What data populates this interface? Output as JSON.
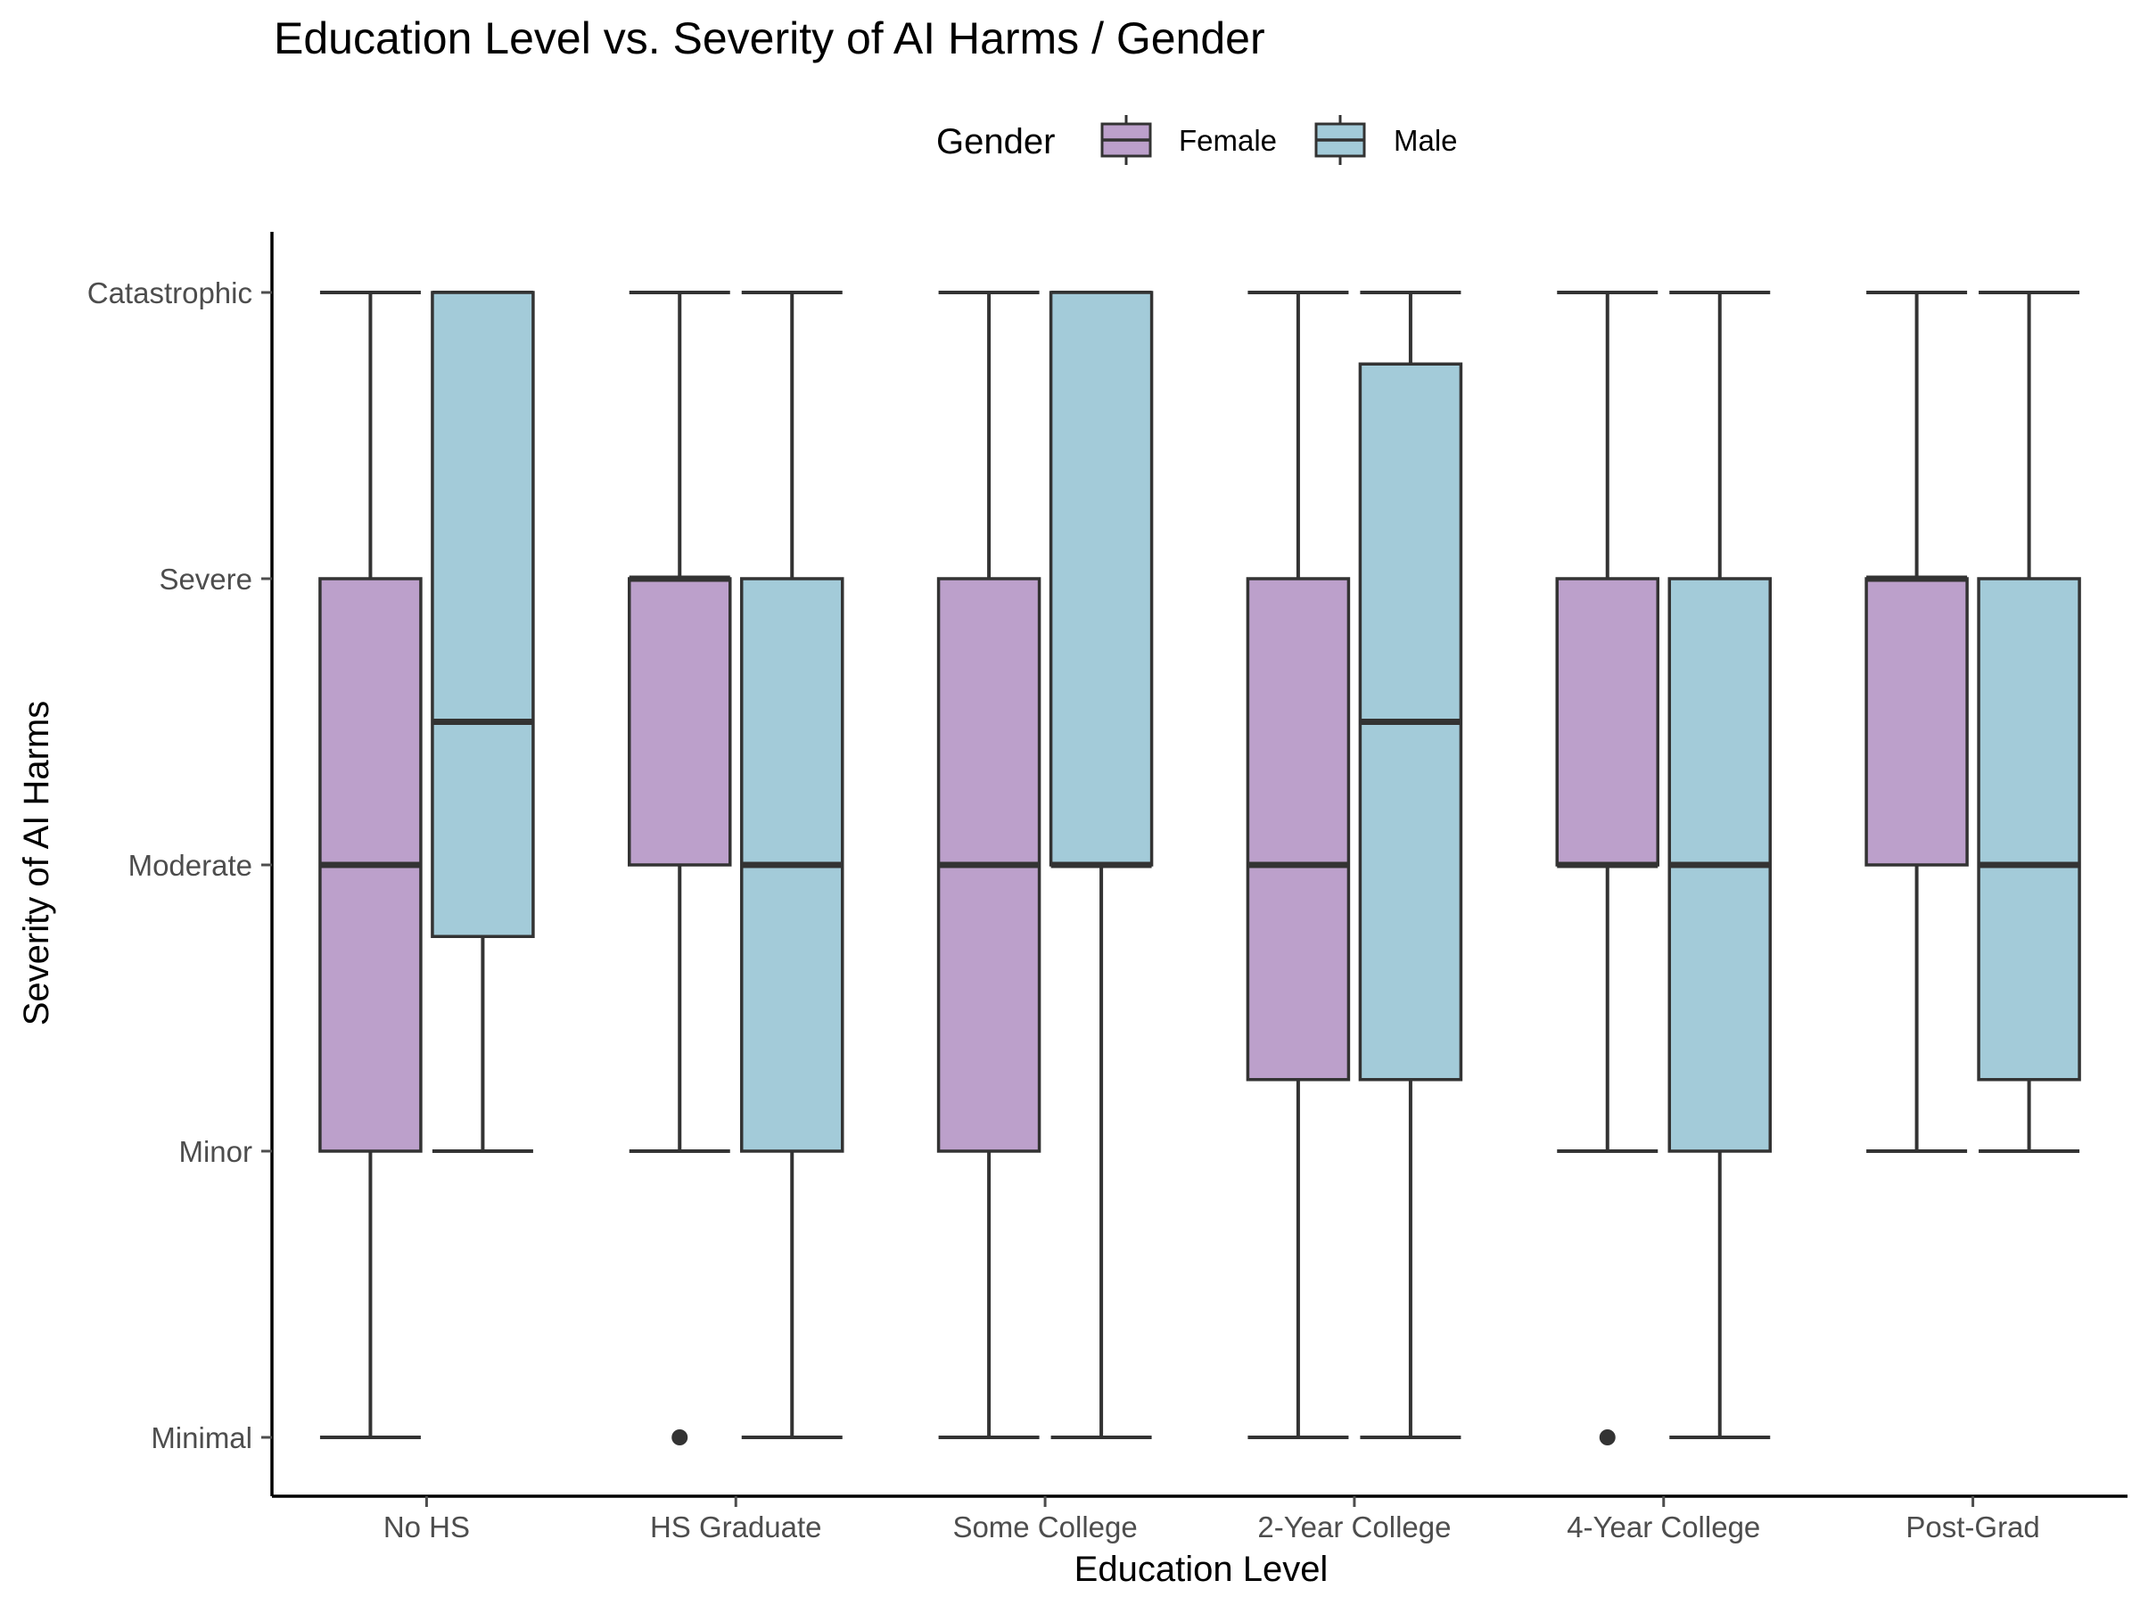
{
  "chart_data": {
    "type": "boxplot",
    "title": "Education Level vs. Severity of AI Harms / Gender",
    "xlabel": "Education Level",
    "ylabel": "Severity of AI Harms",
    "y_levels": [
      "Minimal",
      "Minor",
      "Moderate",
      "Severe",
      "Catastrophic"
    ],
    "ylim": [
      0.85,
      5.15
    ],
    "categories": [
      "No HS",
      "HS Graduate",
      "Some College",
      "2-Year College",
      "4-Year College",
      "Post-Grad"
    ],
    "legend": {
      "title": "Gender",
      "position": "top",
      "entries": [
        {
          "label": "Female",
          "color": "#bca0cb"
        },
        {
          "label": "Male",
          "color": "#a3cbd9"
        }
      ]
    },
    "series": [
      {
        "name": "Female",
        "color": "#bca0cb",
        "boxes": [
          {
            "category": "No HS",
            "whisker_low": 1,
            "q1": 2,
            "median": 3,
            "q3": 4,
            "whisker_high": 5,
            "outliers": []
          },
          {
            "category": "HS Graduate",
            "whisker_low": 2,
            "q1": 3,
            "median": 4,
            "q3": 4,
            "whisker_high": 5,
            "outliers": [
              1
            ]
          },
          {
            "category": "Some College",
            "whisker_low": 1,
            "q1": 2,
            "median": 3,
            "q3": 4,
            "whisker_high": 5,
            "outliers": []
          },
          {
            "category": "2-Year College",
            "whisker_low": 1,
            "q1": 2.25,
            "median": 3,
            "q3": 4,
            "whisker_high": 5,
            "outliers": []
          },
          {
            "category": "4-Year College",
            "whisker_low": 2,
            "q1": 3,
            "median": 3,
            "q3": 4,
            "whisker_high": 5,
            "outliers": [
              1
            ]
          },
          {
            "category": "Post-Grad",
            "whisker_low": 2,
            "q1": 3,
            "median": 4,
            "q3": 4,
            "whisker_high": 5,
            "outliers": []
          }
        ]
      },
      {
        "name": "Male",
        "color": "#a3cbd9",
        "boxes": [
          {
            "category": "No HS",
            "whisker_low": 2,
            "q1": 2.75,
            "median": 3.5,
            "q3": 5,
            "whisker_high": 5,
            "outliers": []
          },
          {
            "category": "HS Graduate",
            "whisker_low": 1,
            "q1": 2,
            "median": 3,
            "q3": 4,
            "whisker_high": 5,
            "outliers": []
          },
          {
            "category": "Some College",
            "whisker_low": 1,
            "q1": 3,
            "median": 3,
            "q3": 5,
            "whisker_high": 5,
            "outliers": []
          },
          {
            "category": "2-Year College",
            "whisker_low": 1,
            "q1": 2.25,
            "median": 3.5,
            "q3": 4.75,
            "whisker_high": 5,
            "outliers": []
          },
          {
            "category": "4-Year College",
            "whisker_low": 1,
            "q1": 2,
            "median": 3,
            "q3": 4,
            "whisker_high": 5,
            "outliers": []
          },
          {
            "category": "Post-Grad",
            "whisker_low": 2,
            "q1": 2.25,
            "median": 3,
            "q3": 4,
            "whisker_high": 5,
            "outliers": []
          }
        ]
      }
    ],
    "grid": false,
    "colors": {
      "stroke": "#333333",
      "axis": "#000000",
      "tick_text": "#4d4d4d"
    }
  }
}
